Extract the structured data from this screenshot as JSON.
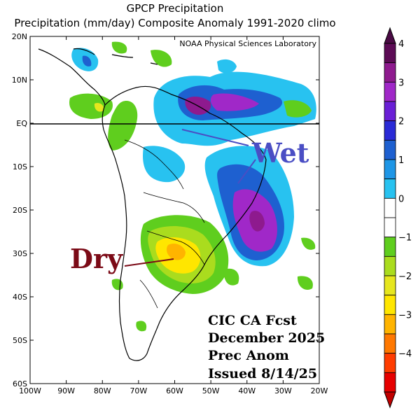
{
  "header": {
    "title_line1": "GPCP Precipitation",
    "title_line2": "Precipitation (mm/day) Composite Anomaly 1991-2020 climo"
  },
  "map": {
    "credit": "NOAA Physical Sciences Laboratory",
    "lon_ticks": [
      "100W",
      "90W",
      "80W",
      "70W",
      "60W",
      "50W",
      "40W",
      "30W",
      "20W"
    ],
    "lat_ticks": [
      "20N",
      "10N",
      "EQ",
      "10S",
      "20S",
      "30S",
      "40S",
      "50S",
      "60S"
    ],
    "annotations": {
      "wet": "Wet",
      "dry": "Dry"
    },
    "forecast_box": {
      "line1": "CIC CA Fcst",
      "line2": "December 2025",
      "line3": "Prec Anom",
      "line4": "Issued 8/14/25"
    },
    "colors": {
      "wet_label": "#4a4ec4",
      "dry_label": "#7b0a16",
      "equator_line": "#000000"
    }
  },
  "colorbar": {
    "labels": [
      "4",
      "3",
      "2",
      "1",
      "0",
      "−1",
      "−2",
      "−3",
      "−4"
    ],
    "colors": [
      "#5c0b55",
      "#8e1a8e",
      "#a028c8",
      "#6a1fd6",
      "#2a2ad6",
      "#1e60d0",
      "#1e96e6",
      "#28c2f0",
      "#ffffff",
      "#ffffff",
      "#5fce1e",
      "#aadc1e",
      "#e6e61e",
      "#ffe600",
      "#ffb400",
      "#ff7800",
      "#ff3c00",
      "#e60000"
    ]
  }
}
